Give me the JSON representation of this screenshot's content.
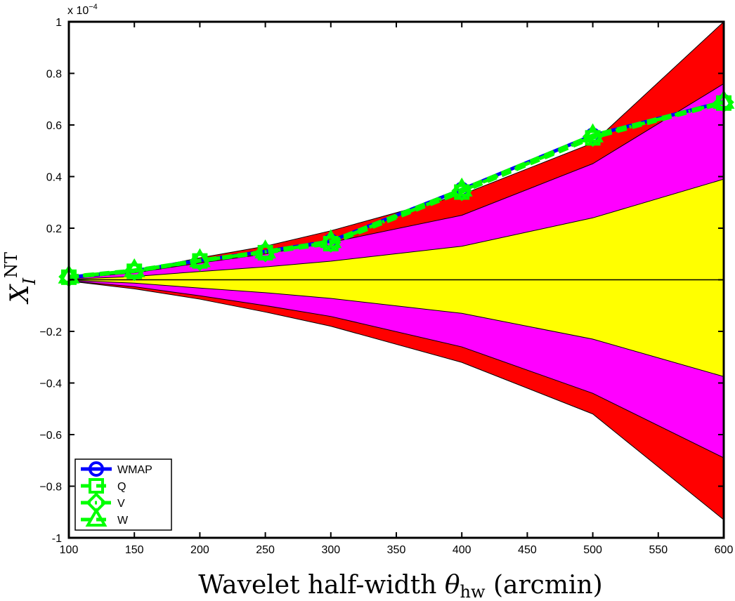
{
  "chart_data": {
    "type": "area",
    "xlabel": "Wavelet half-width θ_hw (arcmin)",
    "ylabel": "X_I^NT",
    "y_scale_label": "x 10^-4",
    "xlim": [
      100,
      600
    ],
    "ylim": [
      -1,
      1
    ],
    "x_ticks": [
      "100",
      "150",
      "200",
      "250",
      "300",
      "350",
      "400",
      "450",
      "500",
      "550",
      "600"
    ],
    "y_ticks": [
      "-1",
      "−0.8",
      "−0.6",
      "−0.4",
      "−0.2",
      "0",
      "0.2",
      "0.4",
      "0.6",
      "0.8",
      "1"
    ],
    "x": [
      100,
      150,
      200,
      250,
      300,
      400,
      500,
      600
    ],
    "bands": [
      {
        "level": "outer",
        "color": "#ff0000",
        "upper": [
          0.005,
          0.035,
          0.085,
          0.13,
          0.19,
          0.33,
          0.53,
          1.0
        ],
        "lower": [
          -0.005,
          -0.035,
          -0.075,
          -0.125,
          -0.18,
          -0.32,
          -0.52,
          -0.93
        ]
      },
      {
        "level": "middle",
        "color": "#ff00ff",
        "upper": [
          0.004,
          0.027,
          0.065,
          0.1,
          0.145,
          0.25,
          0.45,
          0.76
        ],
        "lower": [
          -0.004,
          -0.027,
          -0.062,
          -0.1,
          -0.142,
          -0.26,
          -0.44,
          -0.69
        ]
      },
      {
        "level": "inner",
        "color": "#ffff00",
        "upper": [
          0.002,
          0.013,
          0.032,
          0.05,
          0.072,
          0.13,
          0.24,
          0.39
        ],
        "lower": [
          -0.002,
          -0.013,
          -0.032,
          -0.05,
          -0.072,
          -0.13,
          -0.23,
          -0.375
        ]
      }
    ],
    "series": [
      {
        "name": "WMAP",
        "color": "#0000ff",
        "marker": "circle",
        "linestyle": "solid",
        "values": [
          0.01,
          0.035,
          0.075,
          0.11,
          0.15,
          0.35,
          0.56,
          0.69
        ]
      },
      {
        "name": "Q",
        "color": "#00ff00",
        "marker": "square",
        "linestyle": "dashed",
        "values": [
          0.01,
          0.033,
          0.073,
          0.105,
          0.14,
          0.34,
          0.55,
          0.685
        ]
      },
      {
        "name": "V",
        "color": "#00ff00",
        "marker": "diamond",
        "linestyle": "dashdot",
        "values": [
          0.012,
          0.035,
          0.074,
          0.108,
          0.145,
          0.345,
          0.555,
          0.688
        ]
      },
      {
        "name": "W",
        "color": "#00ff00",
        "marker": "triangle",
        "linestyle": "dashed",
        "values": [
          0.013,
          0.037,
          0.076,
          0.11,
          0.15,
          0.35,
          0.56,
          0.69
        ]
      }
    ],
    "legend": {
      "position": "bottom-left",
      "entries": [
        "WMAP",
        "Q",
        "V",
        "W"
      ]
    },
    "grid": false
  }
}
